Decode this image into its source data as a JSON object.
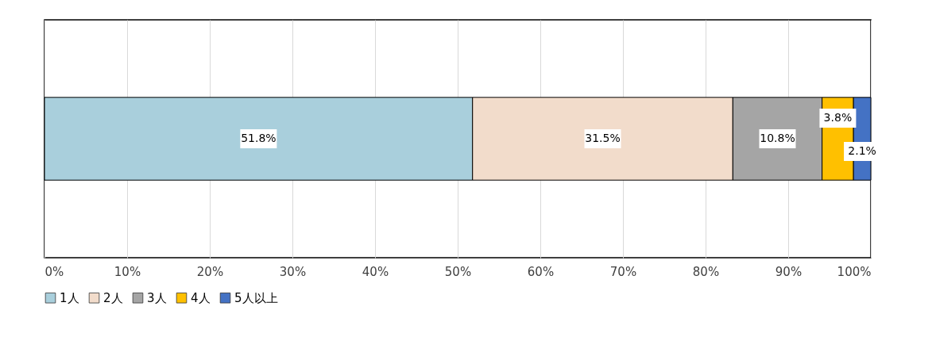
{
  "chart_data": {
    "type": "bar",
    "orientation": "horizontal",
    "stacked": true,
    "categories": [
      null
    ],
    "series": [
      {
        "name": "1人",
        "color": "#a9cfdc",
        "values": [
          51.8
        ],
        "value_labels": [
          "51.8%"
        ]
      },
      {
        "name": "2人",
        "color": "#f2dccb",
        "values": [
          31.5
        ],
        "value_labels": [
          "31.5%"
        ]
      },
      {
        "name": "3人",
        "color": "#a5a5a5",
        "values": [
          10.8
        ],
        "value_labels": [
          "10.8%"
        ]
      },
      {
        "name": "4人",
        "color": "#ffc000",
        "values": [
          3.8
        ],
        "value_labels": [
          "3.8%"
        ]
      },
      {
        "name": "5人以上",
        "color": "#4472c4",
        "values": [
          2.1
        ],
        "value_labels": [
          "2.1%"
        ]
      }
    ],
    "xlim": [
      0,
      100
    ],
    "xticks": [
      {
        "value": 0,
        "label": "0%"
      },
      {
        "value": 10,
        "label": "10%"
      },
      {
        "value": 20,
        "label": "20%"
      },
      {
        "value": 30,
        "label": "30%"
      },
      {
        "value": 40,
        "label": "40%"
      },
      {
        "value": 50,
        "label": "50%"
      },
      {
        "value": 60,
        "label": "60%"
      },
      {
        "value": 70,
        "label": "70%"
      },
      {
        "value": 80,
        "label": "80%"
      },
      {
        "value": 90,
        "label": "90%"
      },
      {
        "value": 100,
        "label": "100%"
      }
    ],
    "grid": "x",
    "legend": "bottom"
  }
}
